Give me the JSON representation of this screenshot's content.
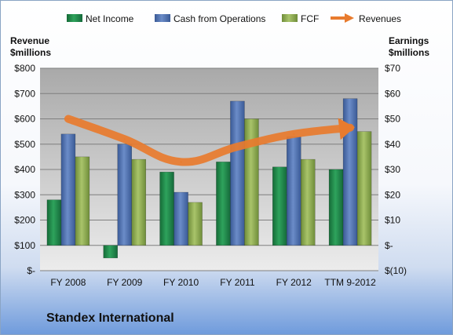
{
  "company": "Standex International",
  "chart_data": {
    "type": "bar",
    "categories": [
      "FY 2008",
      "FY 2009",
      "FY 2010",
      "FY 2011",
      "FY 2012",
      "TTM 9-2012"
    ],
    "series": [
      {
        "name": "Net Income",
        "axis": "right",
        "color": "#1f8a4c",
        "values": [
          18,
          -5,
          29,
          33,
          31,
          30
        ]
      },
      {
        "name": "Cash from Operations",
        "axis": "right",
        "color": "#4b6fae",
        "values": [
          44,
          40,
          21,
          57,
          43,
          58
        ]
      },
      {
        "name": "FCF",
        "axis": "right",
        "color": "#8fae52",
        "values": [
          35,
          34,
          17,
          50,
          34,
          45
        ]
      },
      {
        "name": "Revenues",
        "axis": "left",
        "type": "line",
        "color": "#e87b2e",
        "values": [
          600,
          520,
          430,
          490,
          540,
          565
        ]
      }
    ],
    "left_axis": {
      "title_line1": "Revenue",
      "title_line2": "$millions",
      "ylim": [
        0,
        800
      ],
      "ticks": [
        "$800",
        "$700",
        "$600",
        "$500",
        "$400",
        "$300",
        "$200",
        "$100",
        "$-"
      ]
    },
    "right_axis": {
      "title_line1": "Earnings",
      "title_line2": "$millions",
      "ylim": [
        -10,
        70
      ],
      "ticks": [
        "$70",
        "$60",
        "$50",
        "$40",
        "$30",
        "$20",
        "$10",
        "$-",
        "$(10)"
      ]
    },
    "grid": true,
    "legend_position": "top"
  }
}
